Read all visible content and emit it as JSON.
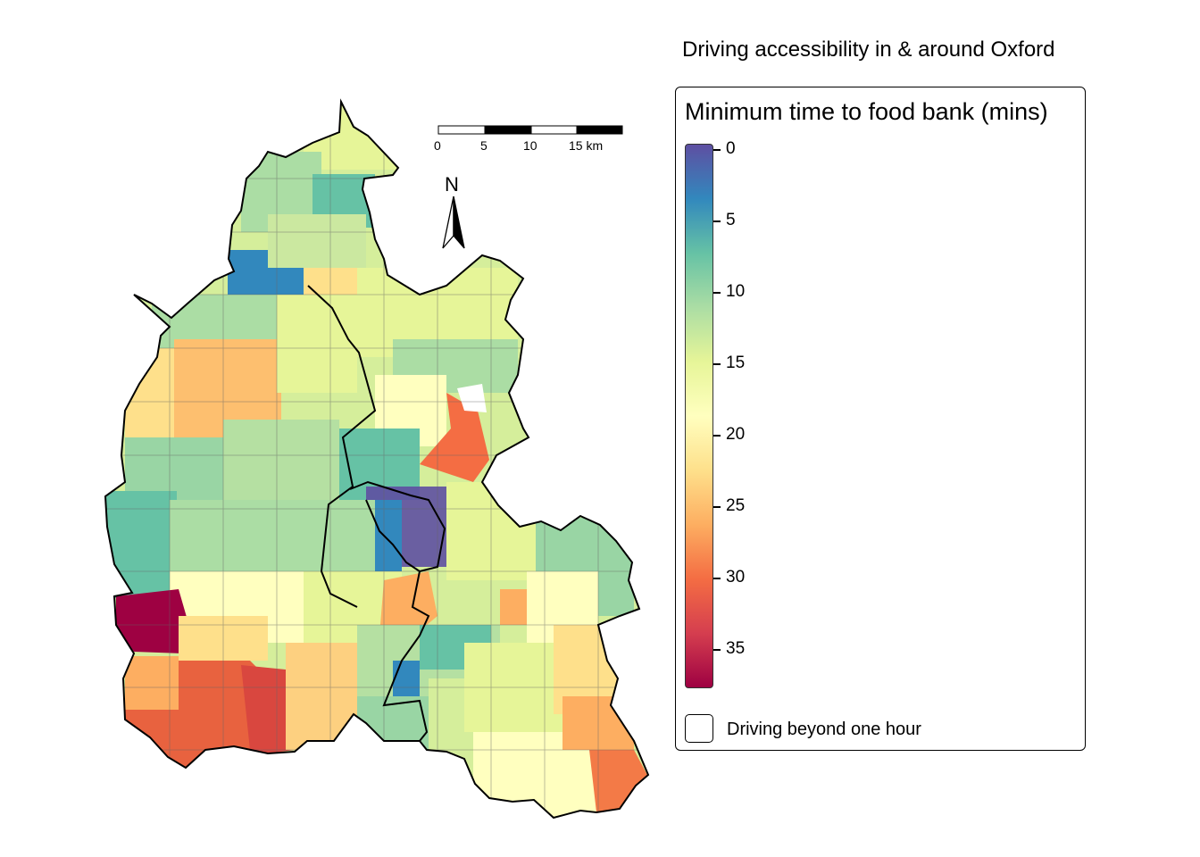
{
  "map": {
    "title": "Driving accessibility in & around Oxford",
    "north_label": "N",
    "scale_bar": {
      "labels": [
        "0",
        "5",
        "10",
        "15 km"
      ],
      "unit": "km"
    }
  },
  "legend": {
    "title": "Minimum time to food bank (mins)",
    "ticks": [
      "0",
      "5",
      "10",
      "15",
      "20",
      "25",
      "30",
      "35"
    ],
    "palette": [
      "#5e4fa2",
      "#3288bd",
      "#66c2a5",
      "#abdda4",
      "#e6f598",
      "#ffffbf",
      "#fee08b",
      "#fdae61",
      "#f46d43",
      "#d53e4f",
      "#9e0142"
    ],
    "range": [
      0,
      37.6
    ],
    "na_label": "Driving beyond one hour",
    "na_color": "#ffffff"
  },
  "colors": {
    "boundary": "#000000",
    "ward_outline": "#555555"
  }
}
